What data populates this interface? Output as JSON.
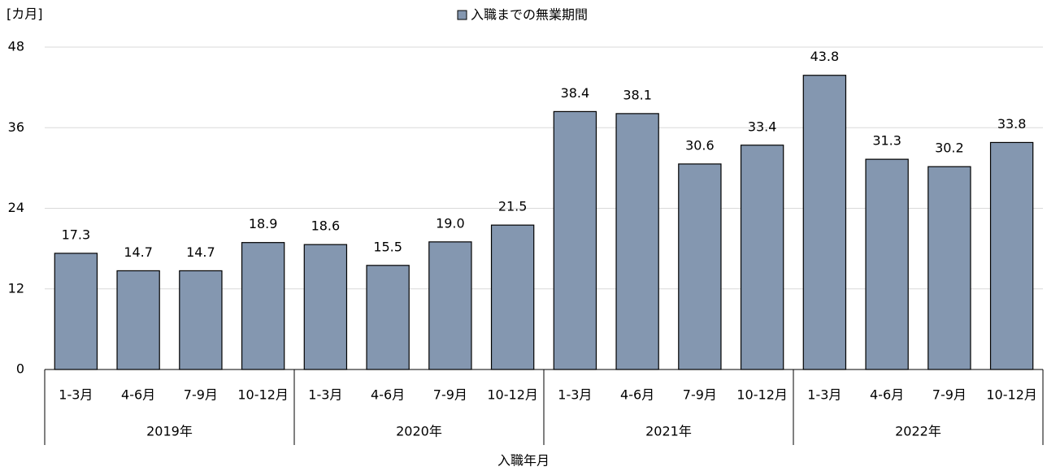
{
  "chart_data": {
    "type": "bar",
    "y_axis_label": "[カ月]",
    "x_axis_label": "入職年月",
    "categories": [
      "1-3月",
      "4-6月",
      "7-9月",
      "10-12月",
      "1-3月",
      "4-6月",
      "7-9月",
      "10-12月",
      "1-3月",
      "4-6月",
      "7-9月",
      "10-12月",
      "1-3月",
      "4-6月",
      "7-9月",
      "10-12月"
    ],
    "category_groups": [
      "2019年",
      "2020年",
      "2021年",
      "2022年"
    ],
    "series": [
      {
        "name": "入職までの無業期間",
        "color": "#8497b0",
        "values": [
          17.3,
          14.7,
          14.7,
          18.9,
          18.6,
          15.5,
          19.0,
          21.5,
          38.4,
          38.1,
          30.6,
          33.4,
          43.8,
          31.3,
          30.2,
          33.8
        ],
        "value_labels": [
          "17.3",
          "14.7",
          "14.7",
          "18.9",
          "18.6",
          "15.5",
          "19.0",
          "21.5",
          "38.4",
          "38.1",
          "30.6",
          "33.4",
          "43.8",
          "31.3",
          "30.2",
          "33.8"
        ]
      }
    ],
    "ylim": [
      0,
      48
    ],
    "yticks": [
      0,
      12,
      24,
      36,
      48
    ],
    "grid": true,
    "legend": "top"
  }
}
